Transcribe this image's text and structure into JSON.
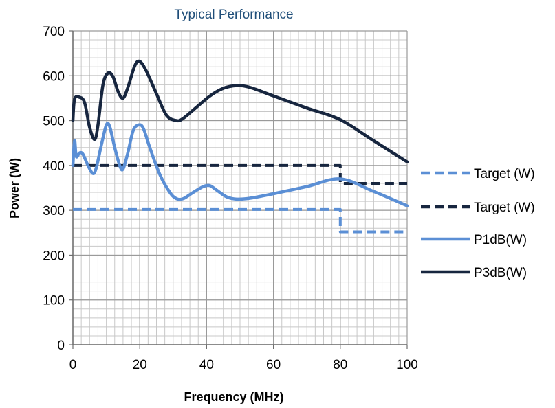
{
  "chart_data": {
    "type": "line",
    "title": "Typical Performance",
    "xlabel": "Frequency (MHz)",
    "ylabel": "Power (W)",
    "xlim": [
      0,
      100
    ],
    "ylim": [
      0,
      700
    ],
    "x_ticks": [
      0,
      20,
      40,
      60,
      80,
      100
    ],
    "y_ticks": [
      0,
      100,
      200,
      300,
      400,
      500,
      600,
      700
    ],
    "grid": true,
    "minor_grid": true,
    "legend_position": "right",
    "series": [
      {
        "name": "Target (W)",
        "color": "#5b8fd5",
        "style": "dashed",
        "points": [
          [
            0,
            302
          ],
          [
            80,
            302
          ],
          [
            80,
            252
          ],
          [
            100,
            252
          ]
        ]
      },
      {
        "name": "Target (W)",
        "color": "#17263f",
        "style": "dashed",
        "points": [
          [
            0,
            400
          ],
          [
            80,
            400
          ],
          [
            80,
            360
          ],
          [
            100,
            360
          ]
        ]
      },
      {
        "name": "P1dB(W)",
        "color": "#5b8fd5",
        "style": "solid",
        "points": [
          [
            0,
            400
          ],
          [
            0.5,
            455
          ],
          [
            1,
            420
          ],
          [
            2,
            428
          ],
          [
            3,
            425
          ],
          [
            4.5,
            400
          ],
          [
            6,
            382
          ],
          [
            7,
            395
          ],
          [
            8.5,
            445
          ],
          [
            10,
            490
          ],
          [
            11,
            487
          ],
          [
            12.5,
            440
          ],
          [
            14,
            400
          ],
          [
            15,
            392
          ],
          [
            16.5,
            430
          ],
          [
            18,
            477
          ],
          [
            19.5,
            490
          ],
          [
            21,
            484
          ],
          [
            23,
            440
          ],
          [
            26,
            380
          ],
          [
            29,
            340
          ],
          [
            31,
            326
          ],
          [
            33,
            326
          ],
          [
            36,
            340
          ],
          [
            39,
            353
          ],
          [
            41,
            355
          ],
          [
            43,
            345
          ],
          [
            46,
            330
          ],
          [
            49,
            325
          ],
          [
            53,
            327
          ],
          [
            60,
            337
          ],
          [
            70,
            353
          ],
          [
            80,
            370
          ],
          [
            90,
            342
          ],
          [
            100,
            310
          ]
        ]
      },
      {
        "name": "P3dB(W)",
        "color": "#17263f",
        "style": "solid",
        "points": [
          [
            0,
            500
          ],
          [
            0.5,
            548
          ],
          [
            2,
            552
          ],
          [
            3.5,
            540
          ],
          [
            5,
            485
          ],
          [
            6.5,
            458
          ],
          [
            7.5,
            490
          ],
          [
            9,
            580
          ],
          [
            10.5,
            606
          ],
          [
            12,
            598
          ],
          [
            13.5,
            565
          ],
          [
            15,
            550
          ],
          [
            16.5,
            575
          ],
          [
            18.5,
            622
          ],
          [
            20,
            632
          ],
          [
            22,
            610
          ],
          [
            25,
            560
          ],
          [
            28,
            512
          ],
          [
            31,
            500
          ],
          [
            33,
            505
          ],
          [
            37,
            530
          ],
          [
            41,
            555
          ],
          [
            45,
            572
          ],
          [
            49,
            578
          ],
          [
            53,
            574
          ],
          [
            60,
            555
          ],
          [
            70,
            528
          ],
          [
            80,
            502
          ],
          [
            90,
            455
          ],
          [
            100,
            408
          ]
        ]
      }
    ]
  }
}
